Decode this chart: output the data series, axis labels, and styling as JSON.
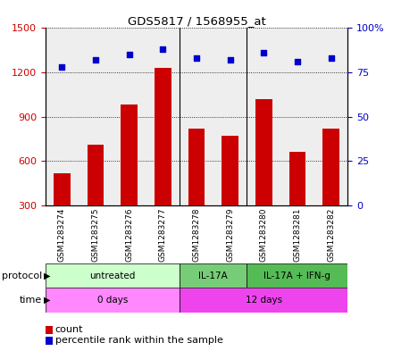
{
  "title": "GDS5817 / 1568955_at",
  "samples": [
    "GSM1283274",
    "GSM1283275",
    "GSM1283276",
    "GSM1283277",
    "GSM1283278",
    "GSM1283279",
    "GSM1283280",
    "GSM1283281",
    "GSM1283282"
  ],
  "counts": [
    520,
    710,
    980,
    1230,
    820,
    770,
    1020,
    660,
    820
  ],
  "percentiles": [
    78,
    82,
    85,
    88,
    83,
    82,
    86,
    81,
    83
  ],
  "ylim_left": [
    300,
    1500
  ],
  "ylim_right": [
    0,
    100
  ],
  "yticks_left": [
    300,
    600,
    900,
    1200,
    1500
  ],
  "yticks_right": [
    0,
    25,
    50,
    75,
    100
  ],
  "bar_color": "#cc0000",
  "dot_color": "#0000cc",
  "protocol_colors": [
    "#ccffcc",
    "#77cc77",
    "#55bb55"
  ],
  "time_colors": [
    "#ff88ff",
    "#ee44ee"
  ],
  "protocol_groups": [
    {
      "label": "untreated",
      "start": 0,
      "end": 4
    },
    {
      "label": "IL-17A",
      "start": 4,
      "end": 6
    },
    {
      "label": "IL-17A + IFN-g",
      "start": 6,
      "end": 9
    }
  ],
  "time_groups": [
    {
      "label": "0 days",
      "start": 0,
      "end": 4
    },
    {
      "label": "12 days",
      "start": 4,
      "end": 9
    }
  ],
  "protocol_label": "protocol",
  "time_label": "time",
  "legend_count": "count",
  "legend_percentile": "percentile rank within the sample",
  "background_color": "#ffffff",
  "plot_bg_color": "#eeeeee",
  "grid_color": "#000000"
}
